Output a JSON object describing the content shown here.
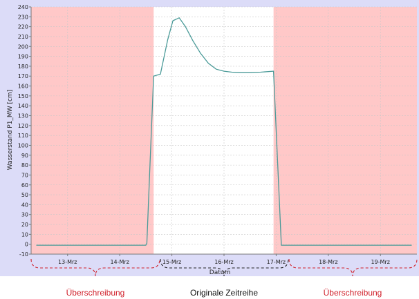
{
  "chart_data": {
    "type": "line",
    "title": "",
    "xlabel": "Datum",
    "ylabel": "Wasserstand P1_MW [cm]",
    "ylim": [
      -10,
      240
    ],
    "yticks": [
      -10,
      0,
      10,
      20,
      30,
      40,
      50,
      60,
      70,
      80,
      90,
      100,
      110,
      120,
      130,
      140,
      150,
      160,
      170,
      180,
      190,
      200,
      210,
      220,
      230,
      240
    ],
    "xlim": [
      12.3,
      19.7
    ],
    "xticks": [
      {
        "label": "13-Mrz",
        "value": 13
      },
      {
        "label": "14-Mrz",
        "value": 14
      },
      {
        "label": "15-Mrz",
        "value": 15
      },
      {
        "label": "16-Mrz",
        "value": 16
      },
      {
        "label": "17-Mrz",
        "value": 17
      },
      {
        "label": "18-Mrz",
        "value": 18
      },
      {
        "label": "19-Mrz",
        "value": 19
      }
    ],
    "grid": true,
    "line_color": "#4a9a98",
    "background_color": "#dcdcf8",
    "plot_background": "#ffffff",
    "shaded_color": "#ffc8c8",
    "shaded_regions": [
      {
        "from": 12.3,
        "to": 14.65
      },
      {
        "from": 16.95,
        "to": 19.7
      }
    ],
    "series": [
      {
        "name": "",
        "x": [
          12.4,
          13.0,
          13.5,
          14.0,
          14.5,
          14.52,
          14.58,
          14.65,
          14.78,
          14.92,
          15.02,
          15.14,
          15.26,
          15.4,
          15.55,
          15.7,
          15.85,
          16.0,
          16.15,
          16.3,
          16.5,
          16.7,
          16.95,
          17.1,
          17.2,
          17.5,
          18.0,
          18.5,
          19.0,
          19.6
        ],
        "y": [
          -1,
          -1,
          -1,
          -1,
          -1,
          1,
          80,
          170,
          172,
          207,
          226,
          229,
          220,
          206,
          193,
          183,
          177,
          175,
          174,
          173.5,
          173.5,
          174,
          175,
          -1,
          -1,
          -1,
          -1,
          -1,
          -1,
          -1
        ]
      }
    ],
    "annotations": [
      {
        "text": "Überschreibung",
        "color": "#d0202a"
      },
      {
        "text": "Originale Zeitreihe",
        "color": "#111111"
      },
      {
        "text": "Überschreibung",
        "color": "#d0202a"
      }
    ]
  }
}
